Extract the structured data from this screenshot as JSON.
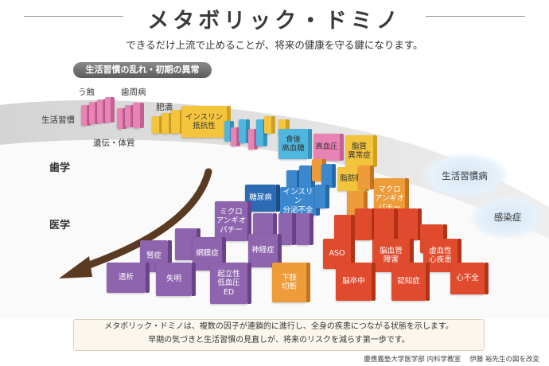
{
  "title": "メタボリック・ドミノ",
  "subtitle": "できるだけ上流で止めることが、将来の健康を守る鍵になります。",
  "stage_label": "生活習慣の乱れ・初期の異常",
  "path_labels": {
    "lifestyle": "生活習慣",
    "genetics": "遺伝・体質",
    "dentistry": "歯学",
    "medicine": "医学"
  },
  "stage_labels": {
    "caries": "う蝕",
    "periodontal": "歯周病",
    "obesity": "肥満"
  },
  "clouds": {
    "lifestyle_disease": "生活習慣病",
    "infection": "感染症"
  },
  "blocks": {
    "insulin_resistance": "インスリン\n抵抗性",
    "postprandial_glucose": "食後\n高血糖",
    "hypertension": "高血圧",
    "dyslipidemia": "脂質\n異常症",
    "fatty_liver": "脂肪肝",
    "macro_angiopathy": "マクロ\nアンギオ\nパチー",
    "diabetes": "糖尿病",
    "insulin_deficiency": "インスリン\n分泌不全",
    "micro_angiopathy": "ミクロ\nアンギオ\nパチー",
    "nephropathy": "腎症",
    "retinopathy": "網膜症",
    "neuropathy": "神経症",
    "dialysis": "透析",
    "blindness": "失明",
    "hypotension_ed": "起立性\n低血圧\nED",
    "amputation": "下肢\n切断",
    "aso": "ASO",
    "cerebrovascular": "脳血管\n障害",
    "ischemic_heart": "虚血性\n心疾患",
    "stroke": "脳卒中",
    "dementia": "認知症",
    "heart_failure": "心不全"
  },
  "note": {
    "line1": "メタボリック・ドミノは、複数の因子が連鎖的に進行し、全身の疾患につながる状態を示します。",
    "line2": "早期の気づきと生活習慣の見直しが、将来のリスクを減らす第一歩です。"
  },
  "credit": "慶應義塾大学医学部 内科学教室　 伊藤 裕先生の図を改変",
  "colors": {
    "purple": "#8d64ad",
    "orange": "#ee9b3a",
    "red": "#e04b2e",
    "blue": "#3b88cf",
    "yellow": "#f4c43c",
    "pink": "#e983b5",
    "arrow": "#5a3a22"
  }
}
